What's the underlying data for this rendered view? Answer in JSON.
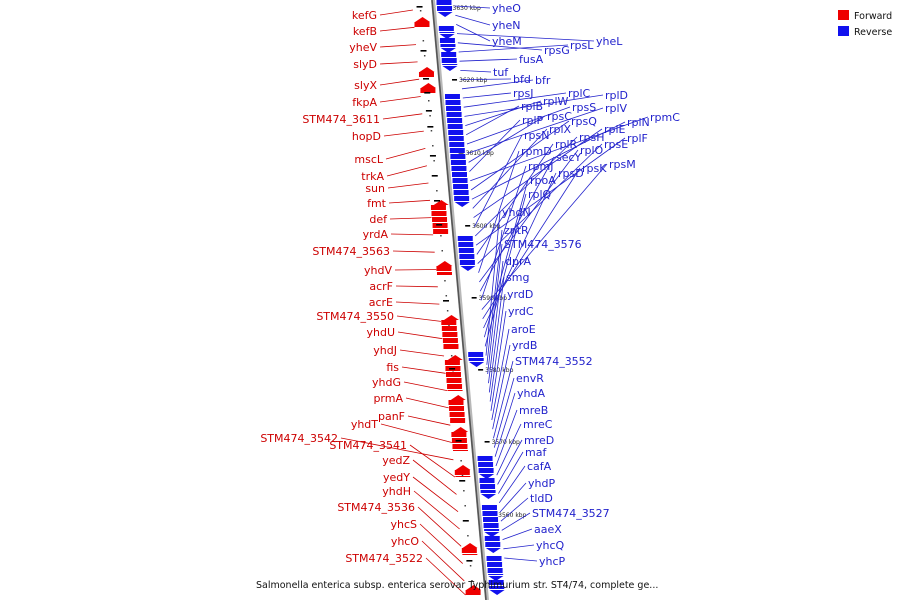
{
  "legend": {
    "forward_label": "Forward",
    "reverse_label": "Reverse",
    "forward_color": "#ee0000",
    "reverse_color": "#1111ee"
  },
  "footer": "Salmonella enterica subsp. enterica serovar Typhimurium str. ST4/74, complete ge...",
  "ticks": [
    "3630 kbp",
    "3620 kbp",
    "3610 kbp",
    "3600 kbp",
    "3590 kbp",
    "3580 kbp",
    "3570 kbp",
    "3560 kbp"
  ],
  "forward_genes": [
    "kefG",
    "kefB",
    "yheV",
    "slyD",
    "slyX",
    "fkpA",
    "STM474_3611",
    "hopD",
    "mscL",
    "trkA",
    "sun",
    "fmt",
    "def",
    "yrdA",
    "STM474_3563",
    "yhdV",
    "acrF",
    "acrE",
    "STM474_3550",
    "yhdU",
    "yhdJ",
    "fis",
    "yhdG",
    "prmA",
    "panF",
    "yhdT",
    "STM474_3542",
    "STM474_3541",
    "yedZ",
    "yedY",
    "yhdH",
    "STM474_3536",
    "yhcS",
    "yhcO",
    "STM474_3522"
  ],
  "reverse_genes": [
    "yheO",
    "yheN",
    "yheM",
    "yheL",
    "rpsG",
    "rpsL",
    "fusA",
    "tuf",
    "bfd",
    "bfr",
    "rpsJ",
    "rplC",
    "rplD",
    "rplW",
    "rplB",
    "rpsS",
    "rplV",
    "rpsC",
    "rplP",
    "rpmC",
    "rpsQ",
    "rplN",
    "rplX",
    "rplE",
    "rpsN",
    "rpsH",
    "rplF",
    "rplR",
    "rpsE",
    "rpmD",
    "rplO",
    "secY",
    "rpmJ",
    "rpsM",
    "rpsK",
    "rpsD",
    "rpoA",
    "rplQ",
    "yhdN",
    "zntR",
    "STM474_3576",
    "dprA",
    "smg",
    "yrdD",
    "yrdC",
    "aroE",
    "yrdB",
    "STM474_3552",
    "envR",
    "yhdA",
    "mreB",
    "mreC",
    "mreD",
    "maf",
    "cafA",
    "yhdP",
    "tldD",
    "STM474_3527",
    "aaeX",
    "yhcQ",
    "yhcP"
  ]
}
